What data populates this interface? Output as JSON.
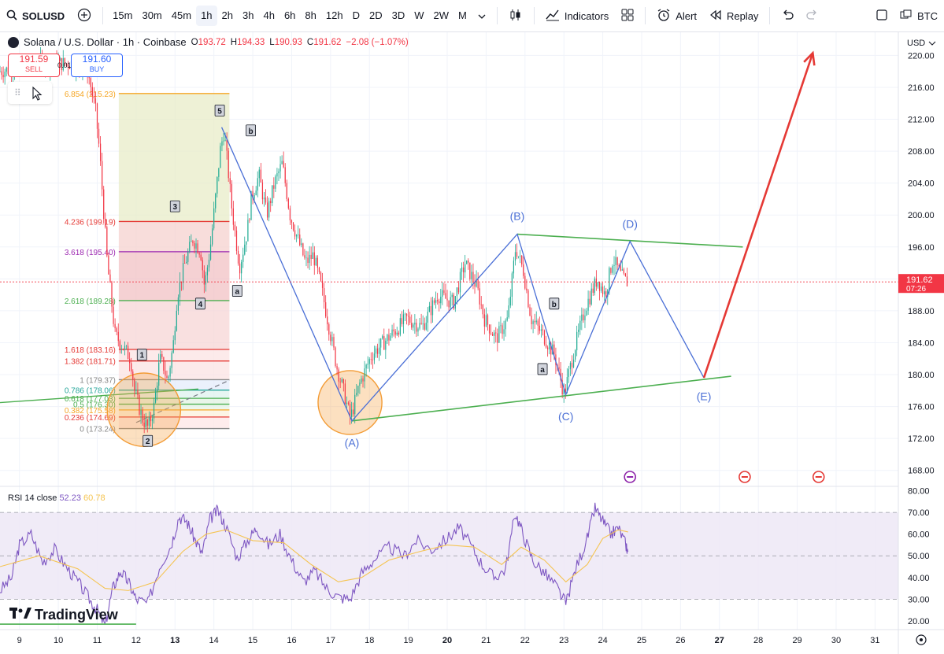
{
  "toolbar": {
    "symbol": "SOLUSD",
    "intervals": [
      "15m",
      "30m",
      "45m",
      "1h",
      "2h",
      "3h",
      "4h",
      "6h",
      "8h",
      "12h",
      "D",
      "2D",
      "3D",
      "W",
      "2W",
      "M"
    ],
    "active_interval": "1h",
    "indicators_label": "Indicators",
    "alert_label": "Alert",
    "replay_label": "Replay",
    "right_symbol": "BTC"
  },
  "legend": {
    "title": "Solana / U.S. Dollar · 1h · Coinbase",
    "o_label": "O",
    "o": "193.72",
    "h_label": "H",
    "h": "194.33",
    "l_label": "L",
    "l": "190.93",
    "c_label": "C",
    "c": "191.62",
    "change": "−2.08 (−1.07%)"
  },
  "trade": {
    "sell_price": "191.59",
    "sell_label": "SELL",
    "spread": "0.01",
    "buy_price": "191.60",
    "buy_label": "BUY"
  },
  "currency": "USD",
  "last_price": {
    "value": "191.62",
    "countdown": "07:26"
  },
  "rsi_legend": {
    "label": "RSI 14 close",
    "rsi": "52.23",
    "ma": "60.78"
  },
  "brand": "TradingView",
  "colors": {
    "up": "#22ab94",
    "down": "#f23645",
    "wave": "#4a6fd6",
    "trend": "#4caf50",
    "projection": "#e53935",
    "rsi": "#7e57c2",
    "rsi_ma": "#f5c451",
    "rsi_band": "#ede7f6",
    "circle": "#f7a74b"
  },
  "chart_data": [
    {
      "type": "candlestick",
      "title": "Solana / U.S. Dollar · 1h · Coinbase",
      "x_ticks": [
        "9",
        "10",
        "11",
        "12",
        "13",
        "14",
        "15",
        "16",
        "17",
        "18",
        "19",
        "20",
        "21",
        "22",
        "23",
        "24",
        "25",
        "26",
        "27",
        "28",
        "29",
        "30",
        "31"
      ],
      "x_bold_ticks": [
        "13",
        "20",
        "27"
      ],
      "y_ticks": [
        "220.00",
        "216.00",
        "212.00",
        "208.00",
        "204.00",
        "200.00",
        "196.00",
        "192.00",
        "188.00",
        "184.00",
        "180.00",
        "176.00",
        "172.00",
        "168.00"
      ],
      "ylim": [
        166,
        223
      ],
      "xlim": [
        8.5,
        31.6
      ],
      "price_path": [
        [
          8.5,
          218
        ],
        [
          9.6,
          219
        ],
        [
          10.4,
          219
        ],
        [
          10.8,
          218
        ],
        [
          11.0,
          213
        ],
        [
          11.1,
          208
        ],
        [
          11.3,
          194
        ],
        [
          11.5,
          185
        ],
        [
          11.7,
          183.5
        ],
        [
          11.9,
          182
        ],
        [
          12.0,
          178
        ],
        [
          12.2,
          174.5
        ],
        [
          12.35,
          173.3
        ],
        [
          12.5,
          176
        ],
        [
          12.65,
          182
        ],
        [
          12.75,
          181
        ],
        [
          12.85,
          179
        ],
        [
          13.0,
          184
        ],
        [
          13.1,
          190
        ],
        [
          13.3,
          194
        ],
        [
          13.5,
          197
        ],
        [
          13.7,
          195.5
        ],
        [
          13.8,
          191
        ],
        [
          13.95,
          196
        ],
        [
          14.1,
          203
        ],
        [
          14.2,
          208
        ],
        [
          14.3,
          210.5
        ],
        [
          14.4,
          206
        ],
        [
          14.5,
          201
        ],
        [
          14.7,
          193.5
        ],
        [
          14.9,
          198
        ],
        [
          15.0,
          202
        ],
        [
          15.2,
          205
        ],
        [
          15.4,
          200
        ],
        [
          15.6,
          204
        ],
        [
          15.8,
          206.5
        ],
        [
          16.0,
          200
        ],
        [
          16.2,
          197
        ],
        [
          16.4,
          194
        ],
        [
          16.6,
          195
        ],
        [
          16.8,
          191
        ],
        [
          17.0,
          186
        ],
        [
          17.2,
          181
        ],
        [
          17.4,
          177.5
        ],
        [
          17.55,
          174.5
        ],
        [
          17.8,
          179
        ],
        [
          18.1,
          182.5
        ],
        [
          18.5,
          184.5
        ],
        [
          19.0,
          187
        ],
        [
          19.4,
          186
        ],
        [
          19.8,
          190
        ],
        [
          20.2,
          189
        ],
        [
          20.5,
          194
        ],
        [
          20.8,
          191
        ],
        [
          21.0,
          187
        ],
        [
          21.3,
          184.5
        ],
        [
          21.6,
          187
        ],
        [
          21.8,
          196
        ],
        [
          22.0,
          193
        ],
        [
          22.2,
          187
        ],
        [
          22.5,
          185
        ],
        [
          22.8,
          182.5
        ],
        [
          23.05,
          177.5
        ],
        [
          23.3,
          183
        ],
        [
          23.6,
          188.5
        ],
        [
          23.9,
          192
        ],
        [
          24.1,
          190
        ],
        [
          24.3,
          194.5
        ],
        [
          24.5,
          192.5
        ],
        [
          24.65,
          191.6
        ]
      ],
      "fibonacci": [
        {
          "ratio": "6.854",
          "price": "215.23",
          "color": "#f5a623"
        },
        {
          "ratio": "4.236",
          "price": "199.19",
          "color": "#e53935"
        },
        {
          "ratio": "3.618",
          "price": "195.40",
          "color": "#9c27b0"
        },
        {
          "ratio": "2.618",
          "price": "189.28",
          "color": "#4caf50"
        },
        {
          "ratio": "1.618",
          "price": "183.16",
          "color": "#e53935"
        },
        {
          "ratio": "1.382",
          "price": "181.71",
          "color": "#e53935"
        },
        {
          "ratio": "1",
          "price": "179.37",
          "color": "#888888"
        },
        {
          "ratio": "0.786",
          "price": "178.06",
          "color": "#26a69a"
        },
        {
          "ratio": "0.618",
          "price": "177.03",
          "color": "#4caf50"
        },
        {
          "ratio": "0.5",
          "price": "176.30",
          "color": "#4caf50"
        },
        {
          "ratio": "0.382",
          "price": "175.58",
          "color": "#f5a623"
        },
        {
          "ratio": "0.236",
          "price": "174.69",
          "color": "#e53935"
        },
        {
          "ratio": "0",
          "price": "173.24",
          "color": "#888888"
        }
      ],
      "impulse_labels": [
        {
          "text": "1",
          "x": 12.15,
          "y": 182.4
        },
        {
          "text": "2",
          "x": 12.3,
          "y": 171.6
        },
        {
          "text": "3",
          "x": 13.0,
          "y": 201.0
        },
        {
          "text": "4",
          "x": 13.65,
          "y": 188.8
        },
        {
          "text": "5",
          "x": 14.15,
          "y": 213.0
        },
        {
          "text": "b",
          "x": 14.95,
          "y": 210.5
        },
        {
          "text": "a",
          "x": 14.6,
          "y": 190.4
        },
        {
          "text": "b",
          "x": 22.75,
          "y": 188.8
        },
        {
          "text": "a",
          "x": 22.45,
          "y": 180.6
        }
      ],
      "wave_path": [
        [
          14.2,
          211
        ],
        [
          17.55,
          174.2
        ],
        [
          21.8,
          197.6
        ],
        [
          23.05,
          177.5
        ],
        [
          24.7,
          196.7
        ],
        [
          26.6,
          179.6
        ]
      ],
      "wave_labels": [
        {
          "text": "(A)",
          "x": 17.55,
          "y": 171
        },
        {
          "text": "(B)",
          "x": 21.8,
          "y": 199.4
        },
        {
          "text": "(C)",
          "x": 23.05,
          "y": 174.3
        },
        {
          "text": "(D)",
          "x": 24.7,
          "y": 198.4
        },
        {
          "text": "(E)",
          "x": 26.6,
          "y": 176.8
        }
      ],
      "upper_trendline": [
        [
          21.8,
          197.6
        ],
        [
          27.6,
          196.0
        ]
      ],
      "lower_trendline": [
        [
          17.55,
          174.2
        ],
        [
          27.3,
          179.8
        ]
      ],
      "old_support_line": [
        [
          8.5,
          176.5
        ],
        [
          13.6,
          178.2
        ]
      ],
      "projection_arrow": [
        [
          26.6,
          179.6
        ],
        [
          29.4,
          220.3
        ]
      ],
      "highlight_circles": [
        {
          "x": 12.2,
          "y": 175.6,
          "r_price": 4.6
        },
        {
          "x": 17.5,
          "y": 176.5,
          "r_price": 4.0
        }
      ]
    },
    {
      "type": "line",
      "title": "RSI 14 close",
      "y_ticks": [
        "80.00",
        "70.00",
        "60.00",
        "50.00",
        "40.00",
        "30.00",
        "20.00"
      ],
      "ylim": [
        16,
        82
      ],
      "band": [
        30,
        70
      ],
      "midline": 50,
      "rsi_points": [
        [
          8.5,
          34
        ],
        [
          8.8,
          40
        ],
        [
          9.0,
          55
        ],
        [
          9.3,
          60
        ],
        [
          9.6,
          47
        ],
        [
          9.9,
          53
        ],
        [
          10.2,
          45
        ],
        [
          10.5,
          38
        ],
        [
          10.8,
          30
        ],
        [
          11.0,
          25
        ],
        [
          11.2,
          18
        ],
        [
          11.4,
          35
        ],
        [
          11.6,
          43
        ],
        [
          11.8,
          38
        ],
        [
          12.0,
          30
        ],
        [
          12.3,
          28
        ],
        [
          12.6,
          45
        ],
        [
          12.9,
          55
        ],
        [
          13.1,
          68
        ],
        [
          13.3,
          66
        ],
        [
          13.5,
          58
        ],
        [
          13.7,
          51
        ],
        [
          13.9,
          67
        ],
        [
          14.1,
          71
        ],
        [
          14.3,
          64
        ],
        [
          14.6,
          49
        ],
        [
          14.9,
          58
        ],
        [
          15.1,
          63
        ],
        [
          15.4,
          55
        ],
        [
          15.7,
          60
        ],
        [
          16.0,
          48
        ],
        [
          16.3,
          38
        ],
        [
          16.6,
          43
        ],
        [
          16.9,
          35
        ],
        [
          17.2,
          31
        ],
        [
          17.5,
          30
        ],
        [
          17.8,
          42
        ],
        [
          18.1,
          48
        ],
        [
          18.5,
          54
        ],
        [
          18.9,
          50
        ],
        [
          19.2,
          57
        ],
        [
          19.6,
          53
        ],
        [
          20.0,
          58
        ],
        [
          20.3,
          63
        ],
        [
          20.6,
          55
        ],
        [
          20.9,
          46
        ],
        [
          21.2,
          40
        ],
        [
          21.5,
          44
        ],
        [
          21.75,
          70
        ],
        [
          21.95,
          60
        ],
        [
          22.2,
          48
        ],
        [
          22.5,
          42
        ],
        [
          22.8,
          36
        ],
        [
          23.05,
          28
        ],
        [
          23.3,
          44
        ],
        [
          23.6,
          58
        ],
        [
          23.8,
          72
        ],
        [
          24.0,
          66
        ],
        [
          24.2,
          60
        ],
        [
          24.4,
          63
        ],
        [
          24.6,
          55
        ],
        [
          24.65,
          52
        ]
      ],
      "ma_points": [
        [
          8.5,
          45
        ],
        [
          9.5,
          50
        ],
        [
          10.5,
          44
        ],
        [
          11.2,
          35
        ],
        [
          11.8,
          34
        ],
        [
          12.5,
          38
        ],
        [
          13.2,
          52
        ],
        [
          13.8,
          60
        ],
        [
          14.3,
          62
        ],
        [
          15.0,
          57
        ],
        [
          15.8,
          56
        ],
        [
          16.5,
          46
        ],
        [
          17.2,
          38
        ],
        [
          17.8,
          40
        ],
        [
          18.5,
          48
        ],
        [
          19.3,
          52
        ],
        [
          20.0,
          55
        ],
        [
          20.7,
          54
        ],
        [
          21.4,
          46
        ],
        [
          21.9,
          54
        ],
        [
          22.5,
          48
        ],
        [
          23.05,
          38
        ],
        [
          23.6,
          46
        ],
        [
          24.0,
          58
        ],
        [
          24.4,
          62
        ],
        [
          24.65,
          61
        ]
      ]
    }
  ]
}
